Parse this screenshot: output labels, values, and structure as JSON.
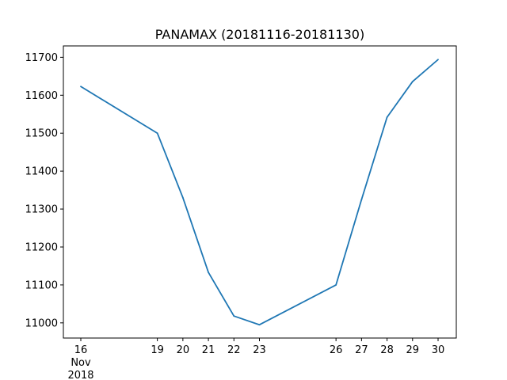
{
  "chart_data": {
    "type": "line",
    "title": "PANAMAX (20181116-20181130)",
    "xlabel": "",
    "ylabel": "",
    "x": [
      "2018-11-16",
      "2018-11-19",
      "2018-11-20",
      "2018-11-21",
      "2018-11-22",
      "2018-11-23",
      "2018-11-26",
      "2018-11-27",
      "2018-11-28",
      "2018-11-29",
      "2018-11-30"
    ],
    "x_tick_labels": [
      "16",
      "19",
      "20",
      "21",
      "22",
      "23",
      "26",
      "27",
      "28",
      "29",
      "30"
    ],
    "x_sublabel": [
      "Nov",
      "2018"
    ],
    "series": [
      {
        "values": [
          11623,
          11500,
          11330,
          11133,
          11018,
          10995,
          11100,
          11325,
          11542,
          11636,
          11694
        ]
      }
    ],
    "ylim": [
      10960,
      11730
    ],
    "y_ticks": [
      11000,
      11100,
      11200,
      11300,
      11400,
      11500,
      11600,
      11700
    ],
    "grid": false,
    "line_color": "#1f77b4"
  }
}
